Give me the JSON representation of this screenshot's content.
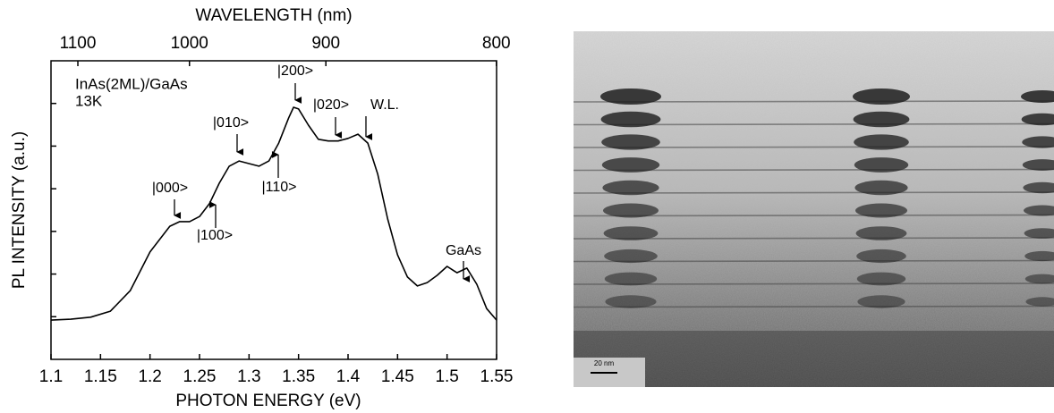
{
  "chart_data": {
    "type": "line",
    "x_label": "PHOTON ENERGY (eV)",
    "x2_label": "WAVELENGTH (nm)",
    "y_label": "PL INTENSITY (a.u.)",
    "xlim": [
      1.1,
      1.55
    ],
    "xticks": [
      1.1,
      1.15,
      1.2,
      1.25,
      1.3,
      1.35,
      1.4,
      1.45,
      1.5,
      1.55
    ],
    "x2ticks": [
      1100,
      1000,
      900,
      800
    ],
    "ylim": [
      0,
      7
    ],
    "yticks": [
      1,
      2,
      3,
      4,
      5,
      6
    ],
    "ytick_labels": false,
    "color": "#000000",
    "x": [
      1.1,
      1.12,
      1.14,
      1.16,
      1.18,
      1.2,
      1.22,
      1.23,
      1.24,
      1.25,
      1.26,
      1.27,
      1.28,
      1.29,
      1.3,
      1.31,
      1.32,
      1.33,
      1.34,
      1.345,
      1.35,
      1.36,
      1.37,
      1.38,
      1.39,
      1.4,
      1.41,
      1.42,
      1.43,
      1.44,
      1.45,
      1.46,
      1.47,
      1.48,
      1.49,
      1.5,
      1.51,
      1.52,
      1.53,
      1.54,
      1.55
    ],
    "values": [
      0.92,
      0.94,
      0.99,
      1.13,
      1.61,
      2.52,
      3.12,
      3.23,
      3.23,
      3.35,
      3.65,
      4.13,
      4.53,
      4.65,
      4.59,
      4.53,
      4.65,
      5.07,
      5.66,
      5.91,
      5.87,
      5.49,
      5.16,
      5.12,
      5.12,
      5.18,
      5.28,
      5.07,
      4.34,
      3.29,
      2.45,
      1.93,
      1.72,
      1.8,
      1.97,
      2.18,
      2.03,
      2.14,
      1.76,
      1.19,
      0.92
    ],
    "sample_label": [
      "InAs(2ML)/GaAs",
      "13K"
    ],
    "annotations": [
      "|000>",
      "|100>",
      "|010>",
      "|110>",
      "|200>",
      "|020>",
      "W.L.",
      "GaAs"
    ]
  },
  "image": {
    "scale_bar_label": "20 nm"
  }
}
